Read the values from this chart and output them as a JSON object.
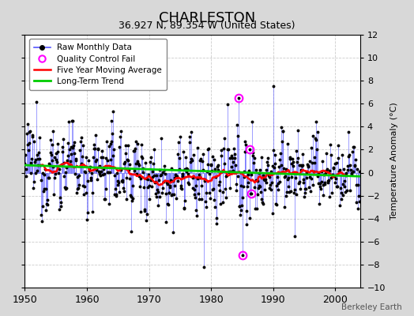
{
  "title": "CHARLESTON",
  "subtitle": "36.927 N, 89.354 W (United States)",
  "credit": "Berkeley Earth",
  "ylabel": "Temperature Anomaly (°C)",
  "xlim": [
    1950,
    2004
  ],
  "ylim": [
    -10,
    12
  ],
  "yticks": [
    -10,
    -8,
    -6,
    -4,
    -2,
    0,
    2,
    4,
    6,
    8,
    10,
    12
  ],
  "xticks": [
    1950,
    1960,
    1970,
    1980,
    1990,
    2000
  ],
  "outer_bg": "#d8d8d8",
  "plot_bg": "#ffffff",
  "raw_line_color": "#5555ff",
  "raw_marker_color": "#000000",
  "moving_avg_color": "#ff0000",
  "trend_color": "#00cc00",
  "qc_color": "#ff00ff",
  "grid_color": "#cccccc",
  "seed": 12345
}
